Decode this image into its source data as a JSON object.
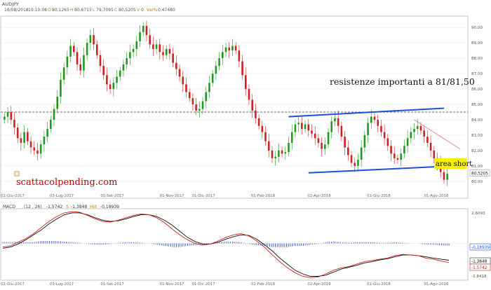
{
  "chart_data": [
    {
      "type": "ohlc",
      "symbol": "AUDJPY",
      "header": {
        "date": "16/08/2018",
        "time": "10:10:08",
        "open_label": "O",
        "open": "80,1265",
        "high_label": "H",
        "high": "80,6715",
        "low_label": "L",
        "low": "79,7095",
        "close_label": "C",
        "close": "80,5205",
        "volume_label": "V",
        "volume": "0",
        "var_label": "Var%",
        "var": "0,47480"
      },
      "ylim": [
        79.4,
        90.6
      ],
      "y_ticks": [
        "90,00",
        "89,00",
        "88,00",
        "87,00",
        "86,00",
        "85,00",
        "84,00",
        "83,00",
        "82,00",
        "81,00",
        "80,00"
      ],
      "y_tick_values": [
        90,
        89,
        88,
        87,
        86,
        85,
        84,
        83,
        82,
        81,
        80
      ],
      "x_ticks": [
        "01-Giu-2017",
        "03-Lug-2017",
        "01-Set-2017",
        "01-Nov-2017",
        "01-Dic-2017",
        "01-Feb-2018",
        "02-Apr-2018",
        "01-Giu-2018",
        "01-Ago-2018"
      ],
      "last_price_label": "80,5205",
      "last_price": 80.52,
      "close_series": [
        84.2,
        84.5,
        84.0,
        83.5,
        82.8,
        82.5,
        83.2,
        82.6,
        82.2,
        82.0,
        81.8,
        82.4,
        82.9,
        83.4,
        84.0,
        84.7,
        85.5,
        86.6,
        87.4,
        88.1,
        88.8,
        88.4,
        87.6,
        87.2,
        88.2,
        89.0,
        89.5,
        88.9,
        88.2,
        87.5,
        86.9,
        86.3,
        86.0,
        86.4,
        86.8,
        87.2,
        87.6,
        88.0,
        88.4,
        88.6,
        89.1,
        89.7,
        90.1,
        89.5,
        88.9,
        88.6,
        88.9,
        88.4,
        88.2,
        88.6,
        88.3,
        87.7,
        87.3,
        86.8,
        86.3,
        85.8,
        85.4,
        85.0,
        84.6,
        84.7,
        85.2,
        85.8,
        86.4,
        87.0,
        87.5,
        88.0,
        88.4,
        88.7,
        88.5,
        88.8,
        88.5,
        87.8,
        86.9,
        86.0,
        85.3,
        84.6,
        84.1,
        83.6,
        83.2,
        82.6,
        82.0,
        81.5,
        81.6,
        82.0,
        81.8,
        81.9,
        82.5,
        83.2,
        83.7,
        83.8,
        83.4,
        83.7,
        83.3,
        83.1,
        82.8,
        82.5,
        82.1,
        82.4,
        83.2,
        83.9,
        84.1,
        83.6,
        82.9,
        82.2,
        81.7,
        81.2,
        81.0,
        81.4,
        82.2,
        83.0,
        83.8,
        84.2,
        84.0,
        83.6,
        83.2,
        82.8,
        82.3,
        81.8,
        81.5,
        81.4,
        81.8,
        82.3,
        82.8,
        83.2,
        83.4,
        83.6,
        83.3,
        82.9,
        82.5,
        82.0,
        81.5,
        81.2,
        80.6,
        80.1,
        80.5
      ],
      "horizontal_line_value": 84.5,
      "channel_upper": {
        "from": 84.2,
        "to": 84.75
      },
      "channel_lower": {
        "from": 80.55,
        "to": 81.0
      },
      "trend_line": {
        "from": 84.0,
        "to": 82.1
      },
      "annotations": {
        "resistance_text": "resistenze importanti a 81/81,50",
        "short_area_text": "area short",
        "watermark": "scattacolpending.com"
      }
    },
    {
      "type": "line",
      "name": "MACD",
      "params": "(12 , 26)",
      "values_header": {
        "macd_value": "-1,5742",
        "signal_label": "S",
        "signal_value": "-1,3848",
        "hist_label": "Hst",
        "hist_value": "-0,18939"
      },
      "y_ticks": [
        "2,6093",
        "-2,8418"
      ],
      "ylim": [
        -2.8418,
        2.6093
      ],
      "value_labels": {
        "hist": "-0,18939",
        "signal": "-1,3848",
        "macd": "-1,5742"
      },
      "macd_series": [
        -0.3,
        -0.2,
        0.1,
        0.4,
        0.8,
        1.3,
        1.8,
        2.2,
        2.5,
        2.6,
        2.55,
        2.3,
        2.0,
        1.8,
        1.75,
        1.9,
        2.1,
        2.3,
        2.4,
        2.35,
        2.1,
        1.7,
        1.2,
        0.7,
        0.3,
        0.0,
        -0.15,
        -0.05,
        0.2,
        0.5,
        0.7,
        0.8,
        0.6,
        0.2,
        -0.3,
        -0.9,
        -1.5,
        -2.0,
        -2.4,
        -2.7,
        -2.8,
        -2.75,
        -2.5,
        -2.2,
        -2.0,
        -1.9,
        -1.7,
        -1.5,
        -1.4,
        -1.3,
        -1.2,
        -1.0,
        -0.9,
        -0.95,
        -1.0,
        -1.2,
        -1.3,
        -1.45,
        -1.57
      ],
      "signal_series": [
        -0.4,
        -0.3,
        -0.05,
        0.3,
        0.7,
        1.1,
        1.6,
        2.0,
        2.35,
        2.5,
        2.5,
        2.35,
        2.1,
        1.9,
        1.8,
        1.85,
        2.0,
        2.2,
        2.35,
        2.35,
        2.2,
        1.9,
        1.5,
        1.0,
        0.5,
        0.15,
        -0.05,
        -0.05,
        0.1,
        0.35,
        0.55,
        0.7,
        0.65,
        0.35,
        -0.1,
        -0.6,
        -1.2,
        -1.7,
        -2.2,
        -2.5,
        -2.7,
        -2.7,
        -2.6,
        -2.35,
        -2.1,
        -1.95,
        -1.8,
        -1.6,
        -1.5,
        -1.35,
        -1.25,
        -1.1,
        -0.95,
        -0.95,
        -1.0,
        -1.1,
        -1.2,
        -1.3,
        -1.38
      ],
      "hist_series": [
        0.1,
        0.1,
        0.15,
        0.1,
        0.1,
        0.2,
        0.2,
        0.2,
        0.15,
        0.1,
        0.05,
        -0.05,
        -0.1,
        -0.1,
        -0.05,
        0.05,
        0.1,
        0.1,
        0.05,
        0.0,
        -0.1,
        -0.2,
        -0.3,
        -0.3,
        -0.2,
        -0.15,
        -0.1,
        0.0,
        0.1,
        0.15,
        0.15,
        0.1,
        -0.05,
        -0.15,
        -0.2,
        -0.3,
        -0.3,
        -0.3,
        -0.2,
        -0.2,
        -0.1,
        -0.05,
        0.1,
        0.15,
        0.1,
        0.05,
        0.1,
        0.1,
        0.1,
        0.05,
        0.05,
        0.1,
        0.05,
        0.0,
        0.0,
        -0.1,
        -0.1,
        -0.15,
        -0.19
      ]
    }
  ]
}
